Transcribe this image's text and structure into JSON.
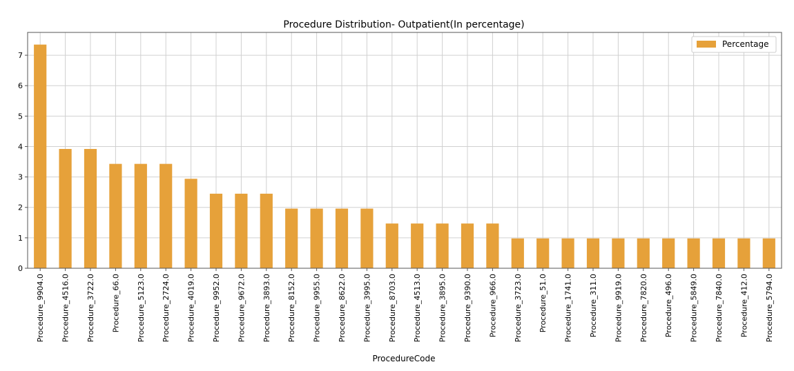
{
  "colors": {
    "bar": "#e6a13a",
    "grid": "#d0d0d0",
    "axis": "#555555",
    "legend_border": "#cccccc"
  },
  "chart_data": {
    "type": "bar",
    "title": "Procedure Distribution- Outpatient(In percentage)",
    "xlabel": "ProcedureCode",
    "ylabel": "",
    "ylim": [
      0,
      7.75
    ],
    "yticks": [
      0,
      1,
      2,
      3,
      4,
      5,
      6,
      7
    ],
    "grid": true,
    "legend_position": "top-right",
    "categories": [
      "Procedure_9904.0",
      "Procedure_4516.0",
      "Procedure_3722.0",
      "Procedure_66.0",
      "Procedure_5123.0",
      "Procedure_2724.0",
      "Procedure_4019.0",
      "Procedure_9952.0",
      "Procedure_9672.0",
      "Procedure_3893.0",
      "Procedure_8152.0",
      "Procedure_9955.0",
      "Procedure_8622.0",
      "Procedure_3995.0",
      "Procedure_8703.0",
      "Procedure_4513.0",
      "Procedure_3895.0",
      "Procedure_9390.0",
      "Procedure_966.0",
      "Procedure_3723.0",
      "Procedure_51.0",
      "Procedure_1741.0",
      "Procedure_311.0",
      "Procedure_9919.0",
      "Procedure_7820.0",
      "Procedure_496.0",
      "Procedure_5849.0",
      "Procedure_7840.0",
      "Procedure_412.0",
      "Procedure_5794.0"
    ],
    "series": [
      {
        "name": "Percentage",
        "values": [
          7.35,
          3.92,
          3.92,
          3.43,
          3.43,
          3.43,
          2.94,
          2.45,
          2.45,
          2.45,
          1.96,
          1.96,
          1.96,
          1.96,
          1.47,
          1.47,
          1.47,
          1.47,
          1.47,
          0.98,
          0.98,
          0.98,
          0.98,
          0.98,
          0.98,
          0.98,
          0.98,
          0.98,
          0.98,
          0.98
        ]
      }
    ]
  }
}
